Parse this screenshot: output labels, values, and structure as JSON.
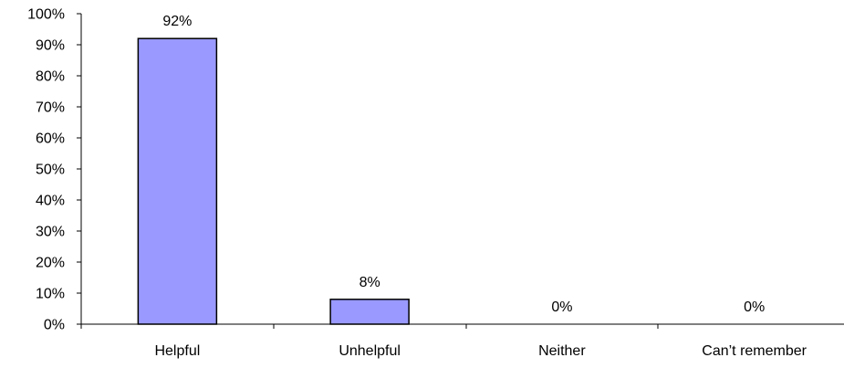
{
  "chart_data": {
    "type": "bar",
    "categories": [
      "Helpful",
      "Unhelpful",
      "Neither",
      "Can’t remember"
    ],
    "values": [
      92,
      8,
      0,
      0
    ],
    "data_labels": [
      "92%",
      "8%",
      "0%",
      "0%"
    ],
    "ylim": [
      0,
      100
    ],
    "yticks": [
      0,
      10,
      20,
      30,
      40,
      50,
      60,
      70,
      80,
      90,
      100
    ],
    "ytick_labels": [
      "0%",
      "10%",
      "20%",
      "30%",
      "40%",
      "50%",
      "60%",
      "70%",
      "80%",
      "90%",
      "100%"
    ],
    "grid": false,
    "legend": "none",
    "title": "",
    "xlabel": "",
    "ylabel": "",
    "colors": {
      "bar_fill": "#9999FF",
      "bar_stroke": "#000000",
      "axis": "#000000"
    }
  }
}
